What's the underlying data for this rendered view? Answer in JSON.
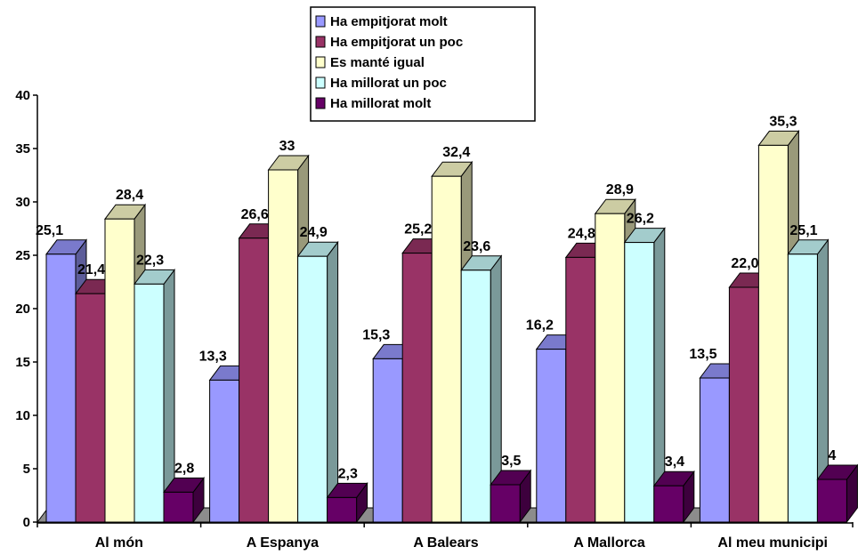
{
  "chart_data": {
    "type": "bar",
    "categories": [
      "Al món",
      "A Espanya",
      "A Balears",
      "A Mallorca",
      "Al meu municipi"
    ],
    "series": [
      {
        "name": "Ha empitjorat molt",
        "values": [
          25.1,
          13.3,
          15.3,
          16.2,
          13.5
        ],
        "labels": [
          "25,1",
          "13,3",
          "15,3",
          "16,2",
          "13,5"
        ],
        "color": "#9999ff"
      },
      {
        "name": "Ha empitjorat un poc",
        "values": [
          21.4,
          26.6,
          25.2,
          24.8,
          22.0
        ],
        "labels": [
          "21,4",
          "26,6",
          "25,2",
          "24,8",
          "22,0"
        ],
        "color": "#993366"
      },
      {
        "name": "Es manté igual",
        "values": [
          28.4,
          33,
          32.4,
          28.9,
          35.3
        ],
        "labels": [
          "28,4",
          "33",
          "32,4",
          "28,9",
          "35,3"
        ],
        "color": "#ffffcc"
      },
      {
        "name": "Ha millorat un poc",
        "values": [
          22.3,
          24.9,
          23.6,
          26.2,
          25.1
        ],
        "labels": [
          "22,3",
          "24,9",
          "23,6",
          "26,2",
          "25,1"
        ],
        "color": "#ccffff"
      },
      {
        "name": "Ha millorat molt",
        "values": [
          2.8,
          2.3,
          3.5,
          3.4,
          4
        ],
        "labels": [
          "2,8",
          "2,3",
          "3,5",
          "3,4",
          "4"
        ],
        "color": "#660066"
      }
    ],
    "yticks": [
      "0",
      "5",
      "10",
      "15",
      "20",
      "25",
      "30",
      "35",
      "40"
    ],
    "ylim": [
      0,
      40
    ],
    "grid": false,
    "legend_position": "top-center",
    "style": "3d-clustered-bar"
  }
}
